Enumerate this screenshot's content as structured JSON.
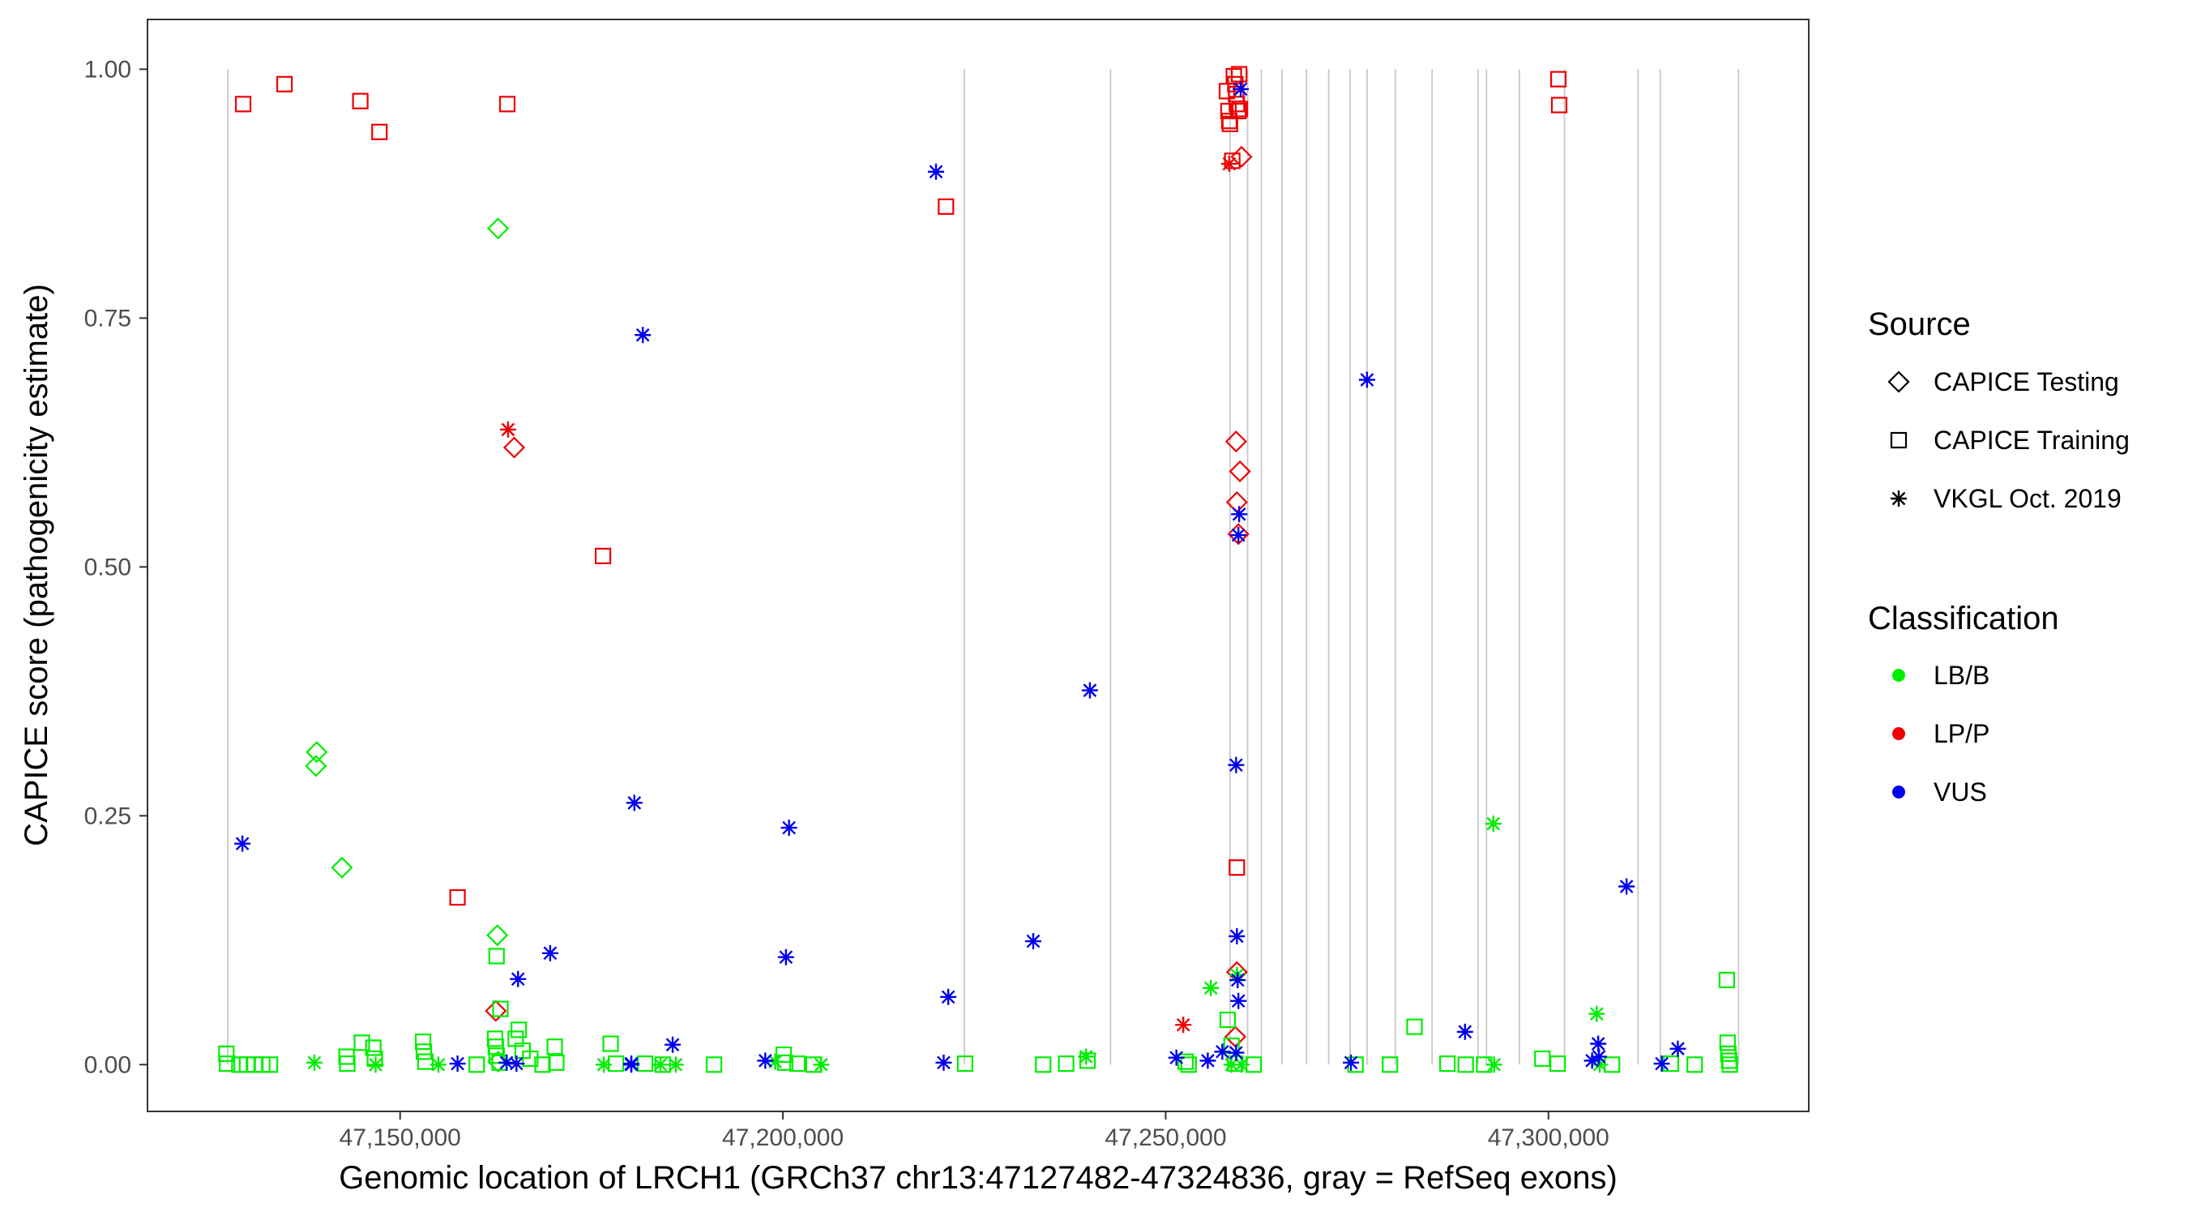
{
  "chart_data": {
    "type": "scatter",
    "title": "",
    "xlabel": "Genomic location of LRCH1 (GRCh37 chr13:47127482-47324836, gray = RefSeq exons)",
    "ylabel": "CAPICE score (pathogenicity estimate)",
    "xlim": [
      47117000,
      47334000
    ],
    "ylim": [
      -0.047,
      1.05
    ],
    "x_ticks": [
      47150000,
      47200000,
      47250000,
      47300000
    ],
    "x_tick_labels": [
      "47,150,000",
      "47,200,000",
      "47,250,000",
      "47,300,000"
    ],
    "y_ticks": [
      0,
      0.25,
      0.5,
      0.75,
      1.0
    ],
    "y_tick_labels": [
      "0.00",
      "0.25",
      "0.50",
      "0.75",
      "1.00"
    ],
    "grid": false,
    "exon_positions": [
      47127482,
      47223700,
      47242800,
      47258400,
      47260700,
      47262500,
      47265200,
      47268400,
      47271300,
      47274100,
      47276300,
      47280000,
      47284800,
      47290800,
      47291900,
      47296200,
      47302100,
      47311700,
      47314600,
      47324836
    ],
    "legend": {
      "placement": "right",
      "source_title": "Source",
      "source_entries": [
        {
          "name": "CAPICE Testing",
          "shape": "diamond"
        },
        {
          "name": "CAPICE Training",
          "shape": "square"
        },
        {
          "name": "VKGL Oct. 2019",
          "shape": "asterisk"
        }
      ],
      "class_title": "Classification",
      "class_entries": [
        {
          "name": "LB/B",
          "color": "#00ee00"
        },
        {
          "name": "LP/P",
          "color": "#ee0000"
        },
        {
          "name": "VUS",
          "color": "#0000ee"
        }
      ]
    },
    "colors": {
      "LB/B": "#00ee00",
      "LP/P": "#ee0000",
      "VUS": "#0000ee"
    },
    "series": [
      {
        "source": "CAPICE Training",
        "classification": "LP/P",
        "points": [
          [
            47129500,
            0.965
          ],
          [
            47134900,
            0.985
          ],
          [
            47144800,
            0.968
          ],
          [
            47147300,
            0.937
          ],
          [
            47164000,
            0.965
          ],
          [
            47221300,
            0.862
          ],
          [
            47157500,
            0.168
          ],
          [
            47176500,
            0.511
          ],
          [
            47258000,
            0.978
          ],
          [
            47258200,
            0.958
          ],
          [
            47258300,
            0.948
          ],
          [
            47258400,
            0.945
          ],
          [
            47258700,
            0.908
          ],
          [
            47258900,
            0.993
          ],
          [
            47259100,
            0.985
          ],
          [
            47259200,
            0.975
          ],
          [
            47259300,
            0.965
          ],
          [
            47259500,
            0.958
          ],
          [
            47259700,
            0.96
          ],
          [
            47259600,
            0.995
          ],
          [
            47259300,
            0.198
          ],
          [
            47301300,
            0.99
          ],
          [
            47301400,
            0.964
          ]
        ]
      },
      {
        "source": "CAPICE Testing",
        "classification": "LP/P",
        "points": [
          [
            47164900,
            0.62
          ],
          [
            47162500,
            0.054
          ],
          [
            47259200,
            0.626
          ],
          [
            47259700,
            0.596
          ],
          [
            47259300,
            0.565
          ],
          [
            47259500,
            0.533
          ],
          [
            47259900,
            0.912
          ],
          [
            47259300,
            0.093
          ],
          [
            47259100,
            0.028
          ]
        ]
      },
      {
        "source": "VKGL Oct. 2019",
        "classification": "LP/P",
        "points": [
          [
            47164100,
            0.638
          ],
          [
            47252300,
            0.04
          ],
          [
            47258300,
            0.905
          ]
        ]
      },
      {
        "source": "CAPICE Testing",
        "classification": "LB/B",
        "points": [
          [
            47162800,
            0.84
          ],
          [
            47139100,
            0.314
          ],
          [
            47139000,
            0.3
          ],
          [
            47142400,
            0.198
          ],
          [
            47162700,
            0.13
          ],
          [
            47162800,
            0.003
          ]
        ]
      },
      {
        "source": "CAPICE Training",
        "classification": "LB/B",
        "points": [
          [
            47127300,
            0.011
          ],
          [
            47127400,
            0.001
          ],
          [
            47129000,
            0.0
          ],
          [
            47130000,
            0.0
          ],
          [
            47131000,
            0.0
          ],
          [
            47132000,
            0.0
          ],
          [
            47133000,
            0.0
          ],
          [
            47143000,
            0.008
          ],
          [
            47143100,
            0.001
          ],
          [
            47145000,
            0.022
          ],
          [
            47146500,
            0.017
          ],
          [
            47146700,
            0.006
          ],
          [
            47153000,
            0.023
          ],
          [
            47153100,
            0.013
          ],
          [
            47153300,
            0.003
          ],
          [
            47160000,
            0.0
          ],
          [
            47162600,
            0.109
          ],
          [
            47163100,
            0.056
          ],
          [
            47162400,
            0.026
          ],
          [
            47162500,
            0.018
          ],
          [
            47162600,
            0.009
          ],
          [
            47163000,
            0.002
          ],
          [
            47165100,
            0.026
          ],
          [
            47165500,
            0.035
          ],
          [
            47166000,
            0.014
          ],
          [
            47167000,
            0.006
          ],
          [
            47168600,
            0.0
          ],
          [
            47170200,
            0.018
          ],
          [
            47170400,
            0.002
          ],
          [
            47177500,
            0.021
          ],
          [
            47178200,
            0.001
          ],
          [
            47182000,
            0.001
          ],
          [
            47184300,
            0.0
          ],
          [
            47191000,
            0.0
          ],
          [
            47200100,
            0.01
          ],
          [
            47200300,
            0.002
          ],
          [
            47201900,
            0.001
          ],
          [
            47204000,
            0.0
          ],
          [
            47223800,
            0.001
          ],
          [
            47234000,
            0.0
          ],
          [
            47237000,
            0.001
          ],
          [
            47239800,
            0.004
          ],
          [
            47252600,
            0.003
          ],
          [
            47253000,
            0.0
          ],
          [
            47258100,
            0.045
          ],
          [
            47258600,
            0.019
          ],
          [
            47259100,
            0.001
          ],
          [
            47261500,
            0.0
          ],
          [
            47274800,
            0.0
          ],
          [
            47279300,
            0.0
          ],
          [
            47282500,
            0.038
          ],
          [
            47286800,
            0.001
          ],
          [
            47289200,
            0.0
          ],
          [
            47291600,
            0.0
          ],
          [
            47299200,
            0.006
          ],
          [
            47301200,
            0.001
          ],
          [
            47308300,
            0.0
          ],
          [
            47316000,
            0.001
          ],
          [
            47319100,
            0.0
          ],
          [
            47323300,
            0.085
          ],
          [
            47323400,
            0.022
          ],
          [
            47323500,
            0.011
          ],
          [
            47323600,
            0.004
          ],
          [
            47323700,
            0.0
          ]
        ]
      },
      {
        "source": "VKGL Oct. 2019",
        "classification": "LB/B",
        "points": [
          [
            47138800,
            0.002
          ],
          [
            47146800,
            0.0
          ],
          [
            47155000,
            0.0
          ],
          [
            47176600,
            0.0
          ],
          [
            47184000,
            0.0
          ],
          [
            47186000,
            0.0
          ],
          [
            47199000,
            0.003
          ],
          [
            47205000,
            0.0
          ],
          [
            47239600,
            0.008
          ],
          [
            47255900,
            0.077
          ],
          [
            47258600,
            0.0
          ],
          [
            47259300,
            0.09
          ],
          [
            47259900,
            0.0
          ],
          [
            47292800,
            0.242
          ],
          [
            47292900,
            0.0
          ],
          [
            47306300,
            0.051
          ],
          [
            47306700,
            0.0
          ]
        ]
      },
      {
        "source": "VKGL Oct. 2019",
        "classification": "VUS",
        "points": [
          [
            47129400,
            0.222
          ],
          [
            47163900,
            0.002
          ],
          [
            47165400,
            0.086
          ],
          [
            47169600,
            0.112
          ],
          [
            47181700,
            0.733
          ],
          [
            47180600,
            0.263
          ],
          [
            47185600,
            0.02
          ],
          [
            47200800,
            0.238
          ],
          [
            47200400,
            0.108
          ],
          [
            47197700,
            0.004
          ],
          [
            47220000,
            0.897
          ],
          [
            47221600,
            0.068
          ],
          [
            47221000,
            0.002
          ],
          [
            47232700,
            0.124
          ],
          [
            47240100,
            0.376
          ],
          [
            47259800,
            0.98
          ],
          [
            47259600,
            0.553
          ],
          [
            47259500,
            0.532
          ],
          [
            47259200,
            0.301
          ],
          [
            47259300,
            0.129
          ],
          [
            47259400,
            0.085
          ],
          [
            47259500,
            0.064
          ],
          [
            47259200,
            0.012
          ],
          [
            47257400,
            0.013
          ],
          [
            47255500,
            0.004
          ],
          [
            47251400,
            0.007
          ],
          [
            47276300,
            0.688
          ],
          [
            47274200,
            0.002
          ],
          [
            47157500,
            0.001
          ],
          [
            47289100,
            0.033
          ],
          [
            47310200,
            0.179
          ],
          [
            47306500,
            0.021
          ],
          [
            47305700,
            0.004
          ],
          [
            47306600,
            0.008
          ],
          [
            47316900,
            0.016
          ],
          [
            47314800,
            0.001
          ],
          [
            47165200,
            0.001
          ],
          [
            47180200,
            0.001
          ],
          [
            47180200,
            0.0
          ]
        ]
      }
    ]
  }
}
